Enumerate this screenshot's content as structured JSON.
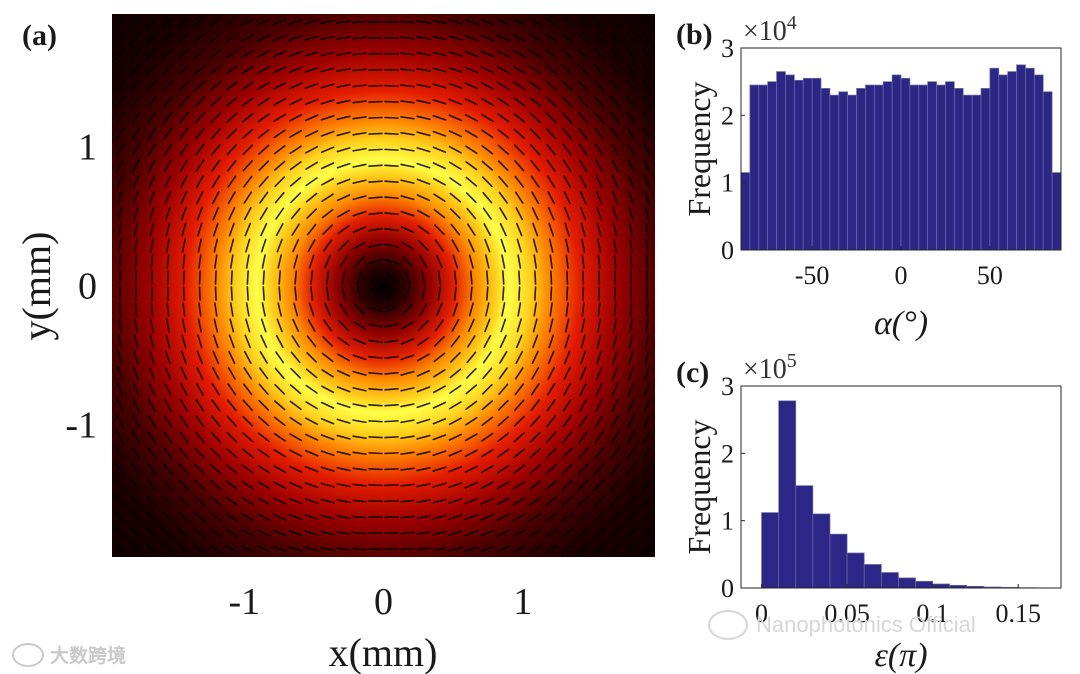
{
  "chart_data": [
    {
      "panel_label": "(a)",
      "type": "heatmap",
      "title": "",
      "xlabel": "x(mm)",
      "ylabel": "y(mm)",
      "xlim": [
        -1.95,
        1.95
      ],
      "ylim": [
        -1.95,
        1.95
      ],
      "xticks": [
        -1,
        0,
        1
      ],
      "yticks": [
        1,
        0,
        -1
      ],
      "xtick_labels": [
        "-1",
        "0",
        "1"
      ],
      "ytick_labels": [
        "1",
        "0",
        "-1"
      ],
      "description_values": {
        "intensity_profile": "donut (ring) beam",
        "peak_radius_mm": 0.75,
        "ring_width_mm": 0.35,
        "polarization_arrows_grid": 34
      },
      "colormap": [
        "#000000",
        "#6e0000",
        "#e21a00",
        "#ff9a00",
        "#ffff46"
      ]
    },
    {
      "panel_label": "(b)",
      "type": "bar",
      "xlabel": "α(°)",
      "ylabel": "Frequency",
      "multiplier_base": "×10",
      "multiplier_exp": "4",
      "xlim": [
        -90,
        90
      ],
      "ylim": [
        0,
        3
      ],
      "xticks": [
        -50,
        0,
        50
      ],
      "xtick_labels": [
        "-50",
        "0",
        "50"
      ],
      "yticks": [
        0,
        1,
        2,
        3
      ],
      "ytick_labels": [
        "0",
        "1",
        "2",
        "3"
      ],
      "bin_edges_start": -90,
      "bin_width": 5,
      "values": [
        1.15,
        2.45,
        2.45,
        2.5,
        2.65,
        2.6,
        2.52,
        2.55,
        2.55,
        2.4,
        2.3,
        2.35,
        2.3,
        2.4,
        2.45,
        2.45,
        2.5,
        2.6,
        2.55,
        2.45,
        2.45,
        2.5,
        2.45,
        2.5,
        2.4,
        2.3,
        2.3,
        2.4,
        2.7,
        2.6,
        2.65,
        2.75,
        2.7,
        2.6,
        2.35,
        1.15
      ]
    },
    {
      "panel_label": "(c)",
      "type": "bar",
      "xlabel": "ε(π)",
      "ylabel": "Frequency",
      "multiplier_base": "×10",
      "multiplier_exp": "5",
      "xlim": [
        -0.012,
        0.175
      ],
      "ylim": [
        0,
        3
      ],
      "xticks": [
        0,
        0.05,
        0.1,
        0.15
      ],
      "xtick_labels": [
        "0",
        "0.05",
        "0.1",
        "0.15"
      ],
      "yticks": [
        0,
        1,
        2,
        3
      ],
      "ytick_labels": [
        "0",
        "1",
        "2",
        "3"
      ],
      "bin_edges_start": 0,
      "bin_width": 0.01,
      "values": [
        1.12,
        2.78,
        1.52,
        1.1,
        0.8,
        0.52,
        0.35,
        0.23,
        0.15,
        0.1,
        0.06,
        0.04,
        0.025,
        0.015,
        0.01,
        0.005,
        0.003
      ]
    }
  ],
  "watermarks": {
    "left": "大数跨境",
    "right": "Nanophotonics Official"
  }
}
